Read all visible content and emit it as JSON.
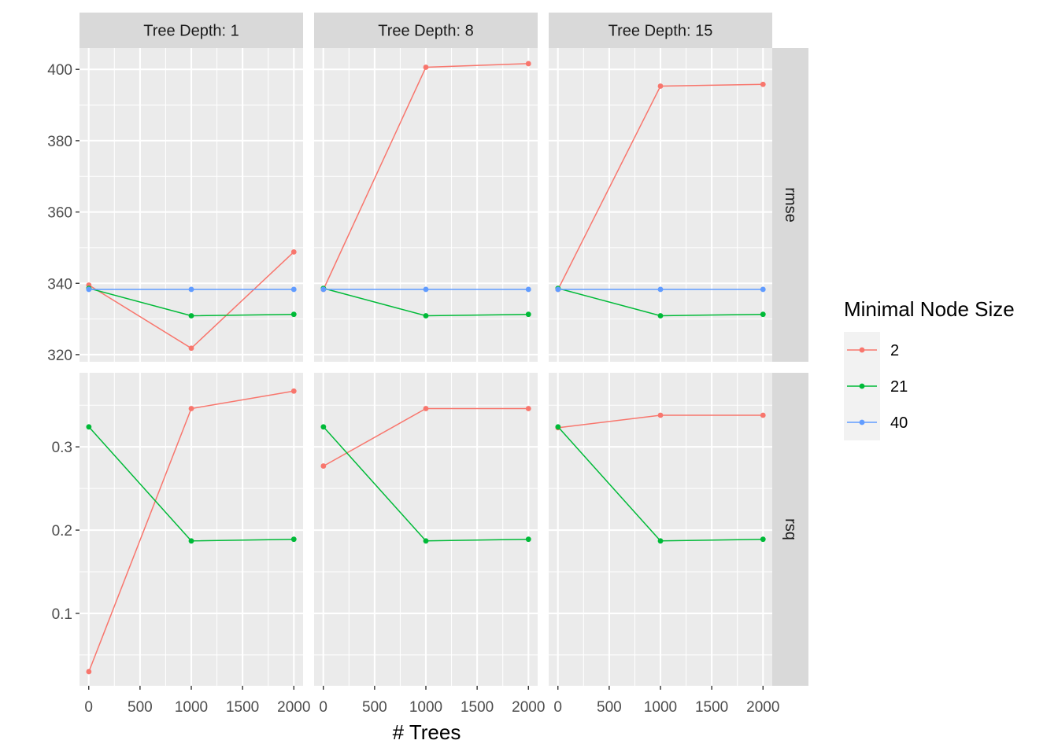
{
  "chart_data": {
    "type": "line",
    "xlabel": "# Trees",
    "x_ticks": [
      0,
      500,
      1000,
      1500,
      2000
    ],
    "xlim": [
      -90,
      2090
    ],
    "facet_columns": [
      "Tree Depth: 1",
      "Tree Depth: 8",
      "Tree Depth: 15"
    ],
    "facet_rows": [
      {
        "label": "rmse",
        "ylim": [
          318,
          406
        ],
        "y_ticks": [
          320,
          340,
          360,
          380,
          400
        ],
        "y_tick_labels": [
          "320",
          "340",
          "360",
          "380",
          "400"
        ]
      },
      {
        "label": "rsq",
        "ylim": [
          0.013,
          0.389
        ],
        "y_ticks": [
          0.1,
          0.2,
          0.3
        ],
        "y_tick_labels": [
          "0.1",
          "0.2",
          "0.3"
        ]
      }
    ],
    "legend": {
      "title": "Minimal Node Size",
      "placement": "right",
      "entries": [
        {
          "label": " 2",
          "color": "#F8766D"
        },
        {
          "label": "21",
          "color": "#00BA38"
        },
        {
          "label": "40",
          "color": "#619CFF"
        }
      ]
    },
    "x": [
      1,
      1000,
      2000
    ],
    "panels": [
      {
        "row": 0,
        "col": 0,
        "series": [
          {
            "legend_index": 0,
            "values": [
              339.5,
              321.8,
              348.8
            ]
          },
          {
            "legend_index": 1,
            "values": [
              338.6,
              330.9,
              331.3
            ]
          },
          {
            "legend_index": 2,
            "values": [
              338.3,
              338.3,
              338.3
            ]
          }
        ]
      },
      {
        "row": 0,
        "col": 1,
        "series": [
          {
            "legend_index": 0,
            "values": [
              338.3,
              400.6,
              401.6
            ]
          },
          {
            "legend_index": 1,
            "values": [
              338.6,
              330.9,
              331.3
            ]
          },
          {
            "legend_index": 2,
            "values": [
              338.3,
              338.3,
              338.3
            ]
          }
        ]
      },
      {
        "row": 0,
        "col": 2,
        "series": [
          {
            "legend_index": 0,
            "values": [
              338.3,
              395.3,
              395.8
            ]
          },
          {
            "legend_index": 1,
            "values": [
              338.6,
              330.9,
              331.3
            ]
          },
          {
            "legend_index": 2,
            "values": [
              338.3,
              338.3,
              338.3
            ]
          }
        ]
      },
      {
        "row": 1,
        "col": 0,
        "series": [
          {
            "legend_index": 0,
            "values": [
              0.03,
              0.346,
              0.367
            ]
          },
          {
            "legend_index": 1,
            "values": [
              0.324,
              0.187,
              0.189
            ]
          }
        ]
      },
      {
        "row": 1,
        "col": 1,
        "series": [
          {
            "legend_index": 0,
            "values": [
              0.277,
              0.346,
              0.346
            ]
          },
          {
            "legend_index": 1,
            "values": [
              0.324,
              0.187,
              0.189
            ]
          }
        ]
      },
      {
        "row": 1,
        "col": 2,
        "series": [
          {
            "legend_index": 0,
            "values": [
              0.323,
              0.338,
              0.338
            ]
          },
          {
            "legend_index": 1,
            "values": [
              0.324,
              0.187,
              0.189
            ]
          }
        ]
      }
    ]
  }
}
